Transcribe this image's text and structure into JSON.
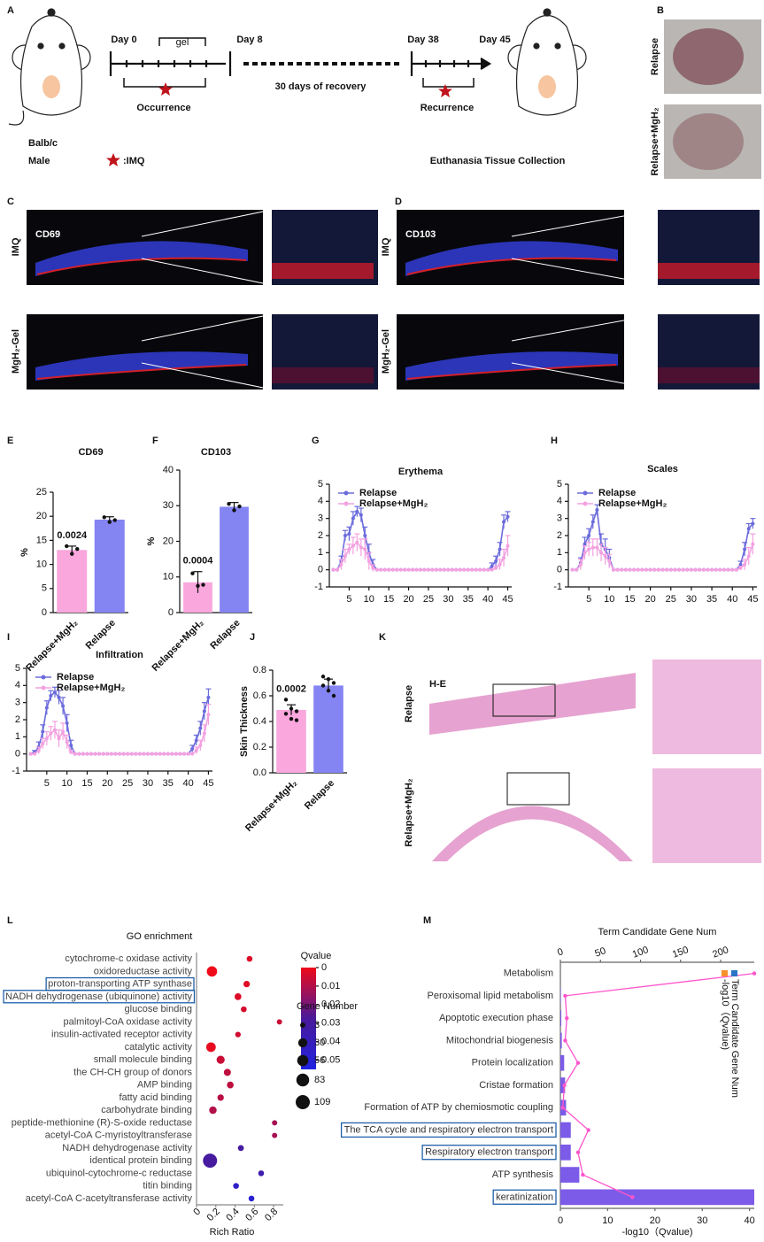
{
  "panel_labels": [
    "A",
    "B",
    "C",
    "D",
    "E",
    "F",
    "G",
    "H",
    "I",
    "J",
    "K",
    "L",
    "M"
  ],
  "schematic": {
    "day0": "Day 0",
    "gel": "gel",
    "day8": "Day 8",
    "recovery": "30 days of recovery",
    "day38": "Day 38",
    "day45": "Day 45",
    "occurrence": "Occurrence",
    "recurrence": "Recurrence",
    "strain": "Balb/c",
    "sex": "Male",
    "imq": ":IMQ",
    "collection": "Euthanasia Tissue Collection"
  },
  "photos": {
    "rows": [
      "Relapse",
      "Relapse+MgH₂"
    ]
  },
  "immunofluorescence": [
    {
      "marker": "CD69",
      "rows": [
        "IMQ",
        "MgH₂-Gel"
      ]
    },
    {
      "marker": "CD103",
      "rows": [
        "IMQ",
        "MgH₂-Gel"
      ]
    }
  ],
  "histology": {
    "stain": "H-E",
    "rows": [
      "Relapse",
      "Relapse+MgH₂"
    ]
  },
  "chart_data": [
    {
      "type": "bar",
      "title": "CD69",
      "ylabel": "%",
      "categories": [
        "Relapse+MgH₂",
        "Relapse"
      ],
      "values": [
        13,
        19.3
      ],
      "errors": [
        0.8,
        0.6
      ],
      "points": [
        [
          13.8,
          12.2,
          13.2
        ],
        [
          19.8,
          18.8,
          19.2
        ]
      ],
      "p_value": 0.0024,
      "colors": [
        "#f9a7dc",
        "#8484f2"
      ],
      "ylim": [
        0,
        25
      ],
      "yticks": [
        0,
        5,
        10,
        15,
        20,
        25
      ]
    },
    {
      "type": "bar",
      "title": "CD103",
      "ylabel": "%",
      "categories": [
        "Relapse+MgH₂",
        "Relapse"
      ],
      "values": [
        8.5,
        29.7
      ],
      "errors": [
        3,
        1.2
      ],
      "points": [
        [
          11,
          7.5,
          7.8
        ],
        [
          30.5,
          28.7,
          29.8
        ]
      ],
      "p_value": 0.0004,
      "colors": [
        "#f9a7dc",
        "#8484f2"
      ],
      "ylim": [
        0,
        40
      ],
      "yticks": [
        0,
        10,
        20,
        30,
        40
      ]
    },
    {
      "type": "line",
      "title": "Erythema",
      "x": [
        1,
        2,
        3,
        4,
        5,
        6,
        7,
        8,
        9,
        10,
        11,
        12,
        13,
        14,
        15,
        16,
        17,
        18,
        19,
        20,
        21,
        22,
        23,
        24,
        25,
        26,
        27,
        28,
        29,
        30,
        31,
        32,
        33,
        34,
        35,
        36,
        37,
        38,
        39,
        40,
        41,
        42,
        43,
        44,
        45
      ],
      "xlim": [
        0,
        46
      ],
      "xticks": [
        5,
        10,
        15,
        20,
        25,
        30,
        35,
        40,
        45
      ],
      "ylim": [
        -1,
        5
      ],
      "yticks": [
        -1,
        0,
        1,
        2,
        3,
        4,
        5
      ],
      "legend": "upper left",
      "series": [
        {
          "name": "Relapse",
          "color": "#6b6bdc",
          "values": [
            0,
            0,
            0.5,
            2,
            2.1,
            3,
            3.4,
            3.2,
            2,
            1,
            0.3,
            0,
            0,
            0,
            0,
            0,
            0,
            0,
            0,
            0,
            0,
            0,
            0,
            0,
            0,
            0,
            0,
            0,
            0,
            0,
            0,
            0,
            0,
            0,
            0,
            0,
            0,
            0,
            0,
            0,
            0.2,
            0.5,
            1.2,
            2.8,
            3.1
          ],
          "errors": [
            null,
            null,
            0.3,
            0.3,
            0.4,
            0.4,
            0.3,
            0.4,
            0.5,
            0.5,
            0.3,
            null,
            null,
            null,
            null,
            null,
            null,
            null,
            null,
            null,
            null,
            null,
            null,
            null,
            null,
            null,
            null,
            null,
            null,
            null,
            null,
            null,
            null,
            null,
            null,
            null,
            null,
            null,
            null,
            null,
            0.2,
            0.3,
            0.4,
            0.4,
            0.3
          ]
        },
        {
          "name": "Relapse+MgH₂",
          "color": "#f4a0e0",
          "values": [
            0,
            0,
            0.3,
            0.8,
            1.2,
            1.4,
            1.6,
            1.3,
            1.2,
            0.5,
            0.1,
            0,
            0,
            0,
            0,
            0,
            0,
            0,
            0,
            0,
            0,
            0,
            0,
            0,
            0,
            0,
            0,
            0,
            0,
            0,
            0,
            0,
            0,
            0,
            0,
            0,
            0,
            0,
            0,
            0,
            0,
            0.1,
            0.3,
            0.7,
            1.4
          ],
          "errors": [
            null,
            null,
            0.3,
            0.4,
            0.3,
            0.5,
            0.5,
            0.5,
            0.6,
            0.5,
            0.2,
            null,
            null,
            null,
            null,
            null,
            null,
            null,
            null,
            null,
            null,
            null,
            null,
            null,
            null,
            null,
            null,
            null,
            null,
            null,
            null,
            null,
            null,
            null,
            null,
            null,
            null,
            null,
            null,
            null,
            null,
            0.1,
            0.3,
            0.5,
            0.6
          ]
        }
      ]
    },
    {
      "type": "line",
      "title": "Scales",
      "x": [
        1,
        2,
        3,
        4,
        5,
        6,
        7,
        8,
        9,
        10,
        11,
        12,
        13,
        14,
        15,
        16,
        17,
        18,
        19,
        20,
        21,
        22,
        23,
        24,
        25,
        26,
        27,
        28,
        29,
        30,
        31,
        32,
        33,
        34,
        35,
        36,
        37,
        38,
        39,
        40,
        41,
        42,
        43,
        44,
        45
      ],
      "xlim": [
        0,
        46
      ],
      "xticks": [
        5,
        10,
        15,
        20,
        25,
        30,
        35,
        40,
        45
      ],
      "ylim": [
        -1,
        5
      ],
      "yticks": [
        -1,
        0,
        1,
        2,
        3,
        4,
        5
      ],
      "legend": "upper left",
      "series": [
        {
          "name": "Relapse",
          "color": "#6b6bdc",
          "values": [
            0,
            0,
            0.4,
            1.5,
            2,
            2.8,
            3.5,
            1.5,
            1.2,
            0.7,
            0,
            0,
            0,
            0,
            0,
            0,
            0,
            0,
            0,
            0,
            0,
            0,
            0,
            0,
            0,
            0,
            0,
            0,
            0,
            0,
            0,
            0,
            0,
            0,
            0,
            0,
            0,
            0,
            0,
            0,
            0,
            0.3,
            1.2,
            2.4,
            2.7
          ],
          "errors": [
            null,
            null,
            0.3,
            0.4,
            0.4,
            0.4,
            0.3,
            0.6,
            0.6,
            0.5,
            null,
            null,
            null,
            null,
            null,
            null,
            null,
            null,
            null,
            null,
            null,
            null,
            null,
            null,
            null,
            null,
            null,
            null,
            null,
            null,
            null,
            null,
            null,
            null,
            null,
            null,
            null,
            null,
            null,
            null,
            null,
            0.2,
            0.4,
            0.3,
            0.3
          ]
        },
        {
          "name": "Relapse+MgH₂",
          "color": "#f4a0e0",
          "values": [
            0,
            0,
            0.3,
            1,
            1.2,
            1.3,
            1.3,
            1,
            0.8,
            0.5,
            0,
            0,
            0,
            0,
            0,
            0,
            0,
            0,
            0,
            0,
            0,
            0,
            0,
            0,
            0,
            0,
            0,
            0,
            0,
            0,
            0,
            0,
            0,
            0,
            0,
            0,
            0,
            0,
            0,
            0,
            0,
            0.1,
            0.3,
            0.8,
            1.5
          ],
          "errors": [
            null,
            null,
            0.3,
            0.4,
            0.4,
            0.5,
            0.5,
            0.5,
            0.5,
            0.4,
            null,
            null,
            null,
            null,
            null,
            null,
            null,
            null,
            null,
            null,
            null,
            null,
            null,
            null,
            null,
            null,
            null,
            null,
            null,
            null,
            null,
            null,
            null,
            null,
            null,
            null,
            null,
            null,
            null,
            null,
            null,
            0.1,
            0.3,
            0.5,
            0.6
          ]
        }
      ]
    },
    {
      "type": "line",
      "title": "Infiltration",
      "x": [
        1,
        2,
        3,
        4,
        5,
        6,
        7,
        8,
        9,
        10,
        11,
        12,
        13,
        14,
        15,
        16,
        17,
        18,
        19,
        20,
        21,
        22,
        23,
        24,
        25,
        26,
        27,
        28,
        29,
        30,
        31,
        32,
        33,
        34,
        35,
        36,
        37,
        38,
        39,
        40,
        41,
        42,
        43,
        44,
        45
      ],
      "xlim": [
        0,
        46
      ],
      "xticks": [
        5,
        10,
        15,
        20,
        25,
        30,
        35,
        40,
        45
      ],
      "ylim": [
        -1,
        5
      ],
      "yticks": [
        -1,
        0,
        1,
        2,
        3,
        4,
        5
      ],
      "legend": "upper left",
      "series": [
        {
          "name": "Relapse",
          "color": "#6b6bdc",
          "values": [
            0,
            0.1,
            0.4,
            1.3,
            2.7,
            3.4,
            3.6,
            3.3,
            2.8,
            1.8,
            0.5,
            0,
            0,
            0,
            0,
            0,
            0,
            0,
            0,
            0,
            0,
            0,
            0,
            0,
            0,
            0,
            0,
            0,
            0,
            0,
            0,
            0,
            0,
            0,
            0,
            0,
            0,
            0,
            0,
            0,
            0.3,
            0.8,
            1.5,
            2.5,
            3.3
          ],
          "errors": [
            null,
            0.1,
            0.3,
            0.4,
            0.4,
            0.3,
            0.3,
            0.4,
            0.5,
            0.5,
            0.3,
            null,
            null,
            null,
            null,
            null,
            null,
            null,
            null,
            null,
            null,
            null,
            null,
            null,
            null,
            null,
            null,
            null,
            null,
            null,
            null,
            null,
            null,
            null,
            null,
            null,
            null,
            null,
            null,
            null,
            0.2,
            0.3,
            0.4,
            0.5,
            0.5
          ]
        },
        {
          "name": "Relapse+MgH₂",
          "color": "#f4a0e0",
          "values": [
            0,
            0,
            0.2,
            0.6,
            0.9,
            1.2,
            1.4,
            0.9,
            1.3,
            0.7,
            0.1,
            0,
            0,
            0,
            0,
            0,
            0,
            0,
            0,
            0,
            0,
            0,
            0,
            0,
            0,
            0,
            0,
            0,
            0,
            0,
            0,
            0,
            0,
            0,
            0,
            0,
            0,
            0,
            0,
            0,
            0,
            0.2,
            0.5,
            1.2,
            2.3
          ],
          "errors": [
            null,
            null,
            0.2,
            0.3,
            0.4,
            0.4,
            0.5,
            0.5,
            0.5,
            0.4,
            0.1,
            null,
            null,
            null,
            null,
            null,
            null,
            null,
            null,
            null,
            null,
            null,
            null,
            null,
            null,
            null,
            null,
            null,
            null,
            null,
            null,
            null,
            null,
            null,
            null,
            null,
            null,
            null,
            null,
            null,
            null,
            0.2,
            0.3,
            0.5,
            0.6
          ]
        }
      ]
    },
    {
      "type": "bar",
      "ylabel": "Skin Thickness",
      "categories": [
        "Relapse+MgH₂",
        "Relapse"
      ],
      "values": [
        0.49,
        0.68
      ],
      "errors": [
        0.04,
        0.05
      ],
      "points": [
        [
          0.57,
          0.5,
          0.48,
          0.46,
          0.42,
          0.41
        ],
        [
          0.75,
          0.73,
          0.7,
          0.68,
          0.64,
          0.6
        ]
      ],
      "p_value": 0.0002,
      "colors": [
        "#f9a7dc",
        "#8484f2"
      ],
      "ylim": [
        0,
        0.8
      ],
      "yticks": [
        {
          "value": 0,
          "label": "0.0"
        },
        0.2,
        0.4,
        0.6,
        0.8
      ]
    },
    {
      "type": "bubble",
      "title": "GO enrichment",
      "xlabel": "Rich Ratio",
      "categories": [
        "cytochrome-c oxidase activity",
        "oxidoreductase activity",
        "proton-transporting ATP synthase",
        "NADH dehydrogenase (ubiquinone) activity",
        "glucose binding",
        "palmitoyl-CoA oxidase activity",
        "insulin-activated receptor activity",
        "catalytic activity",
        "small molecule binding",
        "the CH-CH group of donors",
        "AMP binding",
        "fatty acid binding",
        "carbohydrate binding",
        "peptide-methionine (R)-S-oxide reductase",
        "acetyl-CoA C-myristoyltransferase",
        "NADH dehydrogenase activity",
        "identical protein binding",
        "ubiquinol-cytochrome-c reductase",
        "titin binding",
        "acetyl-CoA C-acetyltransferase activity"
      ],
      "values": [
        0.55,
        0.16,
        0.52,
        0.43,
        0.49,
        0.86,
        0.43,
        0.15,
        0.25,
        0.32,
        0.35,
        0.25,
        0.17,
        0.81,
        0.81,
        0.46,
        0.14,
        0.67,
        0.41,
        0.57
      ],
      "sizes": [
        5,
        45,
        8,
        10,
        5,
        3,
        4,
        35,
        20,
        12,
        10,
        8,
        15,
        3,
        3,
        6,
        109,
        5,
        5,
        5
      ],
      "qvalues": [
        0.003,
        0,
        0.002,
        0.003,
        0.004,
        0.006,
        0.005,
        0.001,
        0.006,
        0.008,
        0.008,
        0.009,
        0.01,
        0.012,
        0.012,
        0.03,
        0.03,
        0.035,
        0.045,
        0.05
      ],
      "highlight": [
        2,
        3
      ],
      "xlim": [
        0,
        0.9
      ],
      "xticks": [
        0,
        0.2,
        0.4,
        0.6,
        0.8
      ],
      "color_label": "Qvalue",
      "color_lim": [
        0,
        0.055
      ],
      "color_ticks": [
        0,
        0.01,
        0.02,
        0.03,
        0.04,
        0.05
      ],
      "colormap": [
        "#ee0a1a",
        "#4a1a9a",
        "#1f22e0"
      ],
      "size_label": "Gene Number",
      "size_ticks": [
        3,
        30,
        56,
        83,
        109
      ]
    },
    {
      "type": "combo",
      "title": "Term Candidate Gene Num",
      "xlabel": "-log10（Qvalue)",
      "categories": [
        "Metabolism",
        "Peroxisomal lipid metabolism",
        "Apoptotic execution phase",
        "Mitochondrial biogenesis",
        "Protein localization",
        "Cristae formation",
        "Formation of ATP by chemiosmotic coupling",
        "The TCA cycle and respiratory electron transport",
        "Respiratory electron transport",
        "ATP synthesis",
        "keratinization"
      ],
      "series": [
        {
          "name": "-log10（Qvalue)",
          "color": "#7b5be8",
          "values": [
            0,
            0.1,
            0.2,
            0.3,
            0.8,
            1,
            1.2,
            2.2,
            2.2,
            4,
            41
          ]
        },
        {
          "name": "Term Candidate Gene Num",
          "color": "#ff55cc",
          "axis": "x2",
          "values": [
            242,
            6,
            8,
            6,
            22,
            5,
            3,
            35,
            22,
            28,
            90
          ]
        }
      ],
      "legend_colors": [
        "#f5902a",
        "#2a73c4"
      ],
      "highlight": [
        7,
        8,
        10
      ],
      "xlim": [
        0,
        41
      ],
      "xticks": [
        0,
        10,
        20,
        30,
        40
      ],
      "x2lim": [
        0,
        242
      ],
      "x2ticks": [
        0,
        50,
        100,
        150,
        200
      ]
    }
  ]
}
